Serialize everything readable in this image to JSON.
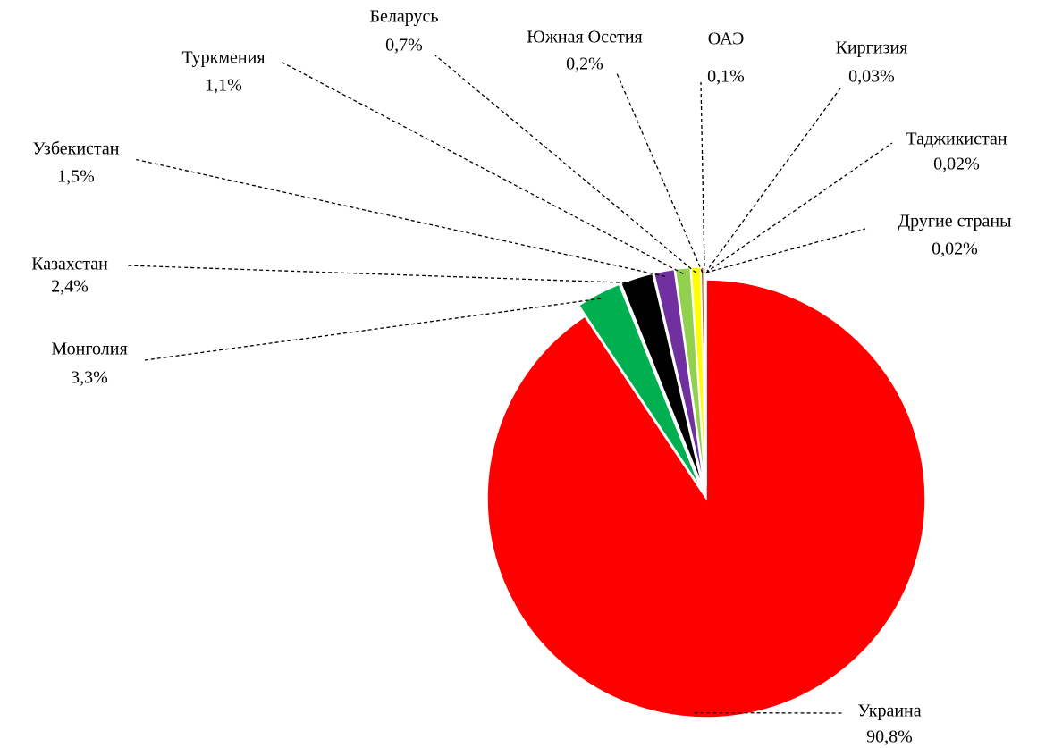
{
  "chart_data": {
    "type": "pie",
    "categories": [
      "Украина",
      "Монголия",
      "Казахстан",
      "Узбекистан",
      "Туркмения",
      "Беларусь",
      "Южная Осетия",
      "ОАЭ",
      "Киргизия",
      "Таджикистан",
      "Другие страны"
    ],
    "values": [
      90.8,
      3.3,
      2.4,
      1.5,
      1.1,
      0.7,
      0.2,
      0.1,
      0.03,
      0.02,
      0.02
    ],
    "value_labels": [
      "90,8%",
      "3,3%",
      "2,4%",
      "1,5%",
      "1,1%",
      "0,7%",
      "0,2%",
      "0,1%",
      "0,03%",
      "0,02%",
      "0,02%"
    ],
    "colors": [
      "#ff0000",
      "#00b050",
      "#000000",
      "#7030a0",
      "#92d050",
      "#ffff00",
      "#c55a11",
      "#7f0000",
      "#4472c4",
      "#a5a5a5",
      "#843c0c"
    ]
  }
}
